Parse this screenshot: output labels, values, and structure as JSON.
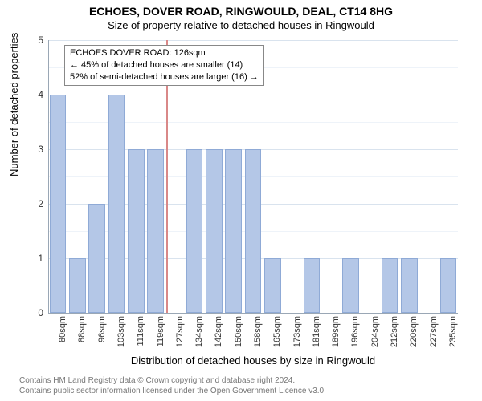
{
  "title": "ECHOES, DOVER ROAD, RINGWOULD, DEAL, CT14 8HG",
  "subtitle": "Size of property relative to detached houses in Ringwould",
  "ylabel": "Number of detached properties",
  "xlabel": "Distribution of detached houses by size in Ringwould",
  "footer_line1": "Contains HM Land Registry data © Crown copyright and database right 2024.",
  "footer_line2": "Contains public sector information licensed under the Open Government Licence v3.0.",
  "callout_line1": "ECHOES DOVER ROAD: 126sqm",
  "callout_line2": "← 45% of detached houses are smaller (14)",
  "callout_line3": "52% of semi-detached houses are larger (16) →",
  "chart": {
    "type": "histogram",
    "ylim": [
      0,
      5
    ],
    "yticks": [
      0,
      1,
      2,
      3,
      4,
      5
    ],
    "xticks": [
      "80sqm",
      "88sqm",
      "96sqm",
      "103sqm",
      "111sqm",
      "119sqm",
      "127sqm",
      "134sqm",
      "142sqm",
      "150sqm",
      "158sqm",
      "165sqm",
      "173sqm",
      "181sqm",
      "189sqm",
      "196sqm",
      "204sqm",
      "212sqm",
      "220sqm",
      "227sqm",
      "235sqm"
    ],
    "values": [
      4,
      1,
      2,
      4,
      3,
      3,
      0,
      3,
      3,
      3,
      3,
      1,
      0,
      1,
      0,
      1,
      0,
      1,
      1,
      0,
      1
    ],
    "bar_color": "#b4c7e7",
    "bar_border_color": "#8faad6",
    "grid_major_color": "#d9e3ee",
    "grid_minor_color": "#eef3f9",
    "background_color": "#ffffff",
    "marker_color": "#d98888",
    "marker_index": 6,
    "bar_width_ratio": 0.85
  }
}
